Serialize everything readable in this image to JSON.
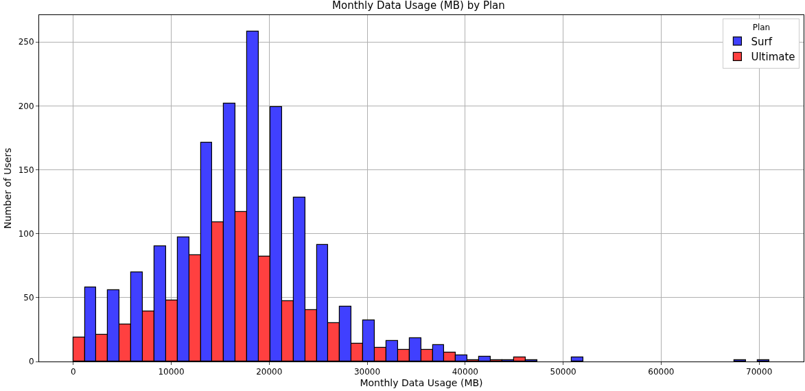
{
  "chart_data": {
    "type": "histogram",
    "title": "Monthly Data Usage (MB) by Plan",
    "xlabel": "Monthly Data Usage (MB)",
    "ylabel": "Number of Users",
    "legend_title": "Plan",
    "bins": [
      0,
      2367,
      4734,
      7101,
      9468,
      11835,
      14202,
      16569,
      18936,
      21303,
      23670,
      26037,
      28404,
      30771,
      33138,
      35505,
      37872,
      40239,
      42606,
      44973,
      47340,
      49707,
      52074,
      54441,
      56808,
      59175,
      61542,
      63909,
      66276,
      68643,
      71010
    ],
    "series": [
      {
        "name": "Ultimate",
        "color": "#ff4040",
        "values": [
          19,
          21,
          29,
          39,
          48,
          83,
          109,
          117,
          82,
          47,
          40,
          30,
          14,
          11,
          9,
          9,
          7,
          1,
          1,
          3,
          0,
          0,
          0,
          0,
          0,
          0,
          0,
          0,
          0,
          0
        ]
      },
      {
        "name": "Surf",
        "color": "#4040ff",
        "values": [
          58,
          56,
          70,
          90,
          97,
          171,
          202,
          258,
          199,
          128,
          91,
          43,
          32,
          16,
          18,
          13,
          5,
          4,
          1,
          1,
          0,
          3,
          0,
          0,
          0,
          0,
          0,
          0,
          1,
          1
        ]
      }
    ],
    "xlim": [
      -3480,
      74540
    ],
    "xticks": [
      0,
      10000,
      20000,
      30000,
      40000,
      50000,
      60000,
      70000
    ],
    "ylim": [
      0,
      271
    ],
    "yticks": [
      0,
      50,
      100,
      150,
      200,
      250
    ],
    "grid": true,
    "legend": "top right"
  }
}
